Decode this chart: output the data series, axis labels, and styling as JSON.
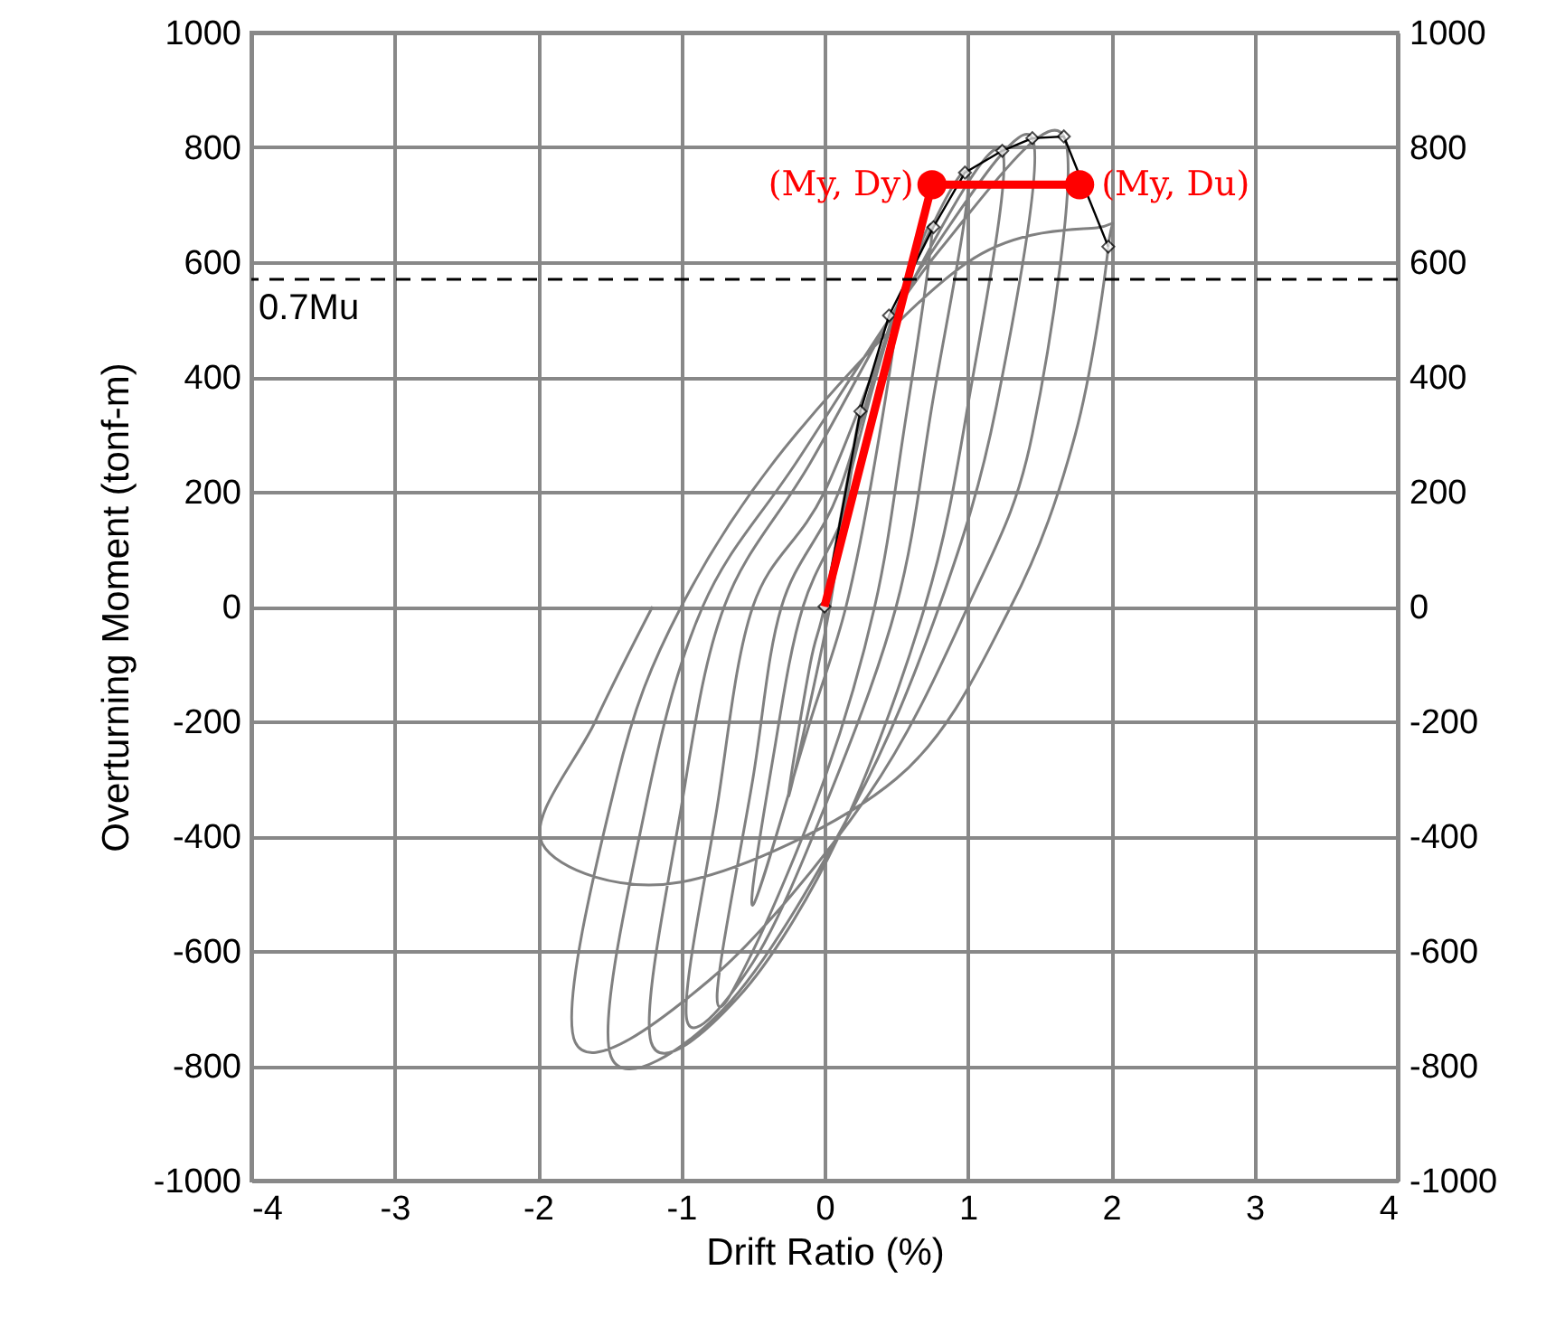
{
  "chart_data": {
    "type": "line",
    "xlabel": "Drift Ratio (%)",
    "ylabel": "Overturning Moment (tonf-m)",
    "xlim": [
      -4,
      4
    ],
    "xticks": [
      -4,
      -3,
      -2,
      -1,
      0,
      1,
      2,
      3,
      4
    ],
    "ylim": [
      -1000,
      1000
    ],
    "yticks": [
      -1000,
      -800,
      -600,
      -400,
      -200,
      0,
      200,
      400,
      600,
      800,
      1000
    ],
    "y2lim": [
      -1000,
      1000
    ],
    "y2ticks": [
      -1000,
      -800,
      -600,
      -400,
      -200,
      0,
      200,
      400,
      600,
      800,
      1000
    ],
    "grid": true,
    "series": [
      {
        "type": "line",
        "color": "#808080",
        "marker": "none",
        "x": [
          0,
          0.25,
          0.1,
          0,
          -0.25,
          -0.1,
          0,
          0.2,
          0.5,
          0.35,
          0.15,
          -0.1,
          -0.5,
          -0.35,
          -0.15,
          0.2,
          0.5,
          0.75,
          0.55,
          0.35,
          0,
          -0.5,
          -0.75,
          -0.5,
          -0.3,
          0.1,
          0.5,
          1.0,
          0.75,
          0.5,
          0,
          -0.5,
          -0.96,
          -0.75,
          -0.5,
          0,
          0.6,
          1.24,
          1.0,
          0.7,
          0.1,
          -0.6,
          -1.21,
          -1.0,
          -0.7,
          -0.1,
          0.7,
          1.45,
          1.2,
          0.8,
          0.2,
          -0.7,
          -1.49,
          -1.25,
          -0.85,
          -0.2,
          0.8,
          1.67,
          1.45,
          1.0,
          0.3,
          -0.8,
          -1.74,
          -1.45,
          -1.0,
          -0.2,
          1.0,
          1.9,
          1.98,
          1.75,
          1.3,
          0.5,
          -1.0,
          -1.97,
          -1.6,
          -1.2
        ],
        "values": [
          0,
          340,
          100,
          -50,
          -330,
          -100,
          0,
          250,
          510,
          250,
          0,
          -200,
          -520,
          -250,
          0,
          200,
          500,
          660,
          300,
          0,
          -300,
          -600,
          -680,
          -300,
          0,
          200,
          520,
          756,
          350,
          0,
          -350,
          -620,
          -721,
          -350,
          0,
          200,
          560,
          794,
          350,
          0,
          -400,
          -680,
          -759,
          -350,
          0,
          250,
          600,
          816,
          350,
          0,
          -350,
          -700,
          -784,
          -350,
          0,
          250,
          620,
          819,
          300,
          0,
          -330,
          -650,
          -759,
          -300,
          0,
          300,
          600,
          660,
          627,
          300,
          0,
          -300,
          -480,
          -413,
          -200,
          0
        ]
      },
      {
        "type": "line",
        "color": "#000000",
        "marker": "diamond",
        "x": [
          0,
          0.25,
          0.45,
          0.76,
          0.98,
          1.24,
          1.45,
          1.67,
          1.98
        ],
        "values": [
          0,
          340,
          507,
          661,
          756,
          794,
          816,
          819,
          627
        ]
      },
      {
        "type": "line",
        "color": "#ff0000",
        "marker": "none",
        "x": [
          0,
          0.75,
          1.78
        ],
        "values": [
          0,
          735,
          735
        ]
      },
      {
        "type": "scatter",
        "color": "#ff0000",
        "marker": "circle",
        "x": [
          0.75,
          1.78
        ],
        "values": [
          735,
          735
        ]
      }
    ],
    "ref_lines": [
      {
        "axis": "y",
        "value": 570,
        "label": "0.7Mu",
        "color": "#000000",
        "line_style": "dashed"
      }
    ],
    "annotations": [
      {
        "text": "(My, Dy)",
        "x": 0.75,
        "y": 735
      },
      {
        "text": "(My, Du)",
        "x": 1.78,
        "y": 735
      }
    ]
  }
}
